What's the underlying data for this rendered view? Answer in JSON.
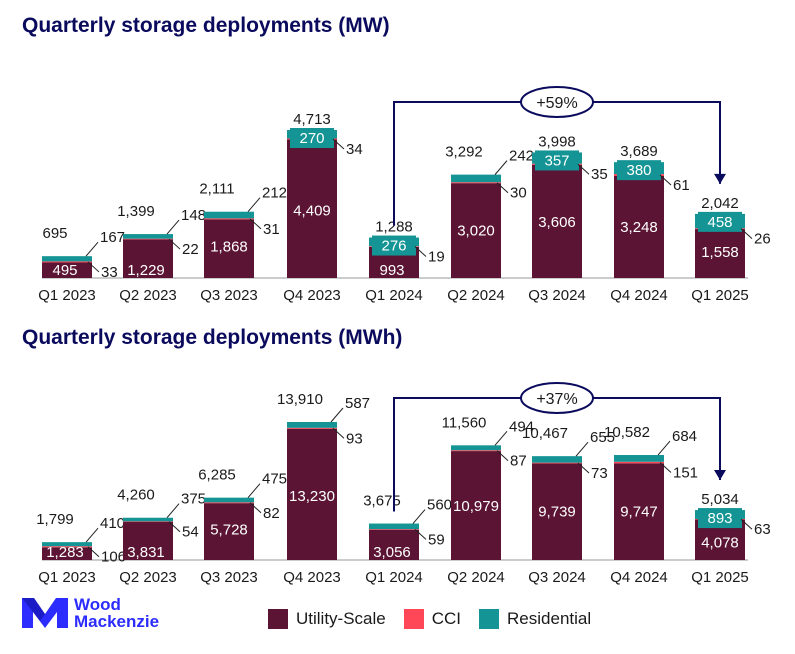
{
  "titles": {
    "mw": "Quarterly storage deployments (MW)",
    "mwh": "Quarterly storage deployments (MWh)"
  },
  "colors": {
    "utility": "#5b1433",
    "cci": "#ff4757",
    "residential": "#149494",
    "navy": "#0b0b5e"
  },
  "brand": {
    "line1": "Wood",
    "line2": "Mackenzie",
    "color": "#2d2cff"
  },
  "legend": {
    "utility": "Utility-Scale",
    "cci": "CCI",
    "residential": "Residential"
  },
  "chart_data": [
    {
      "type": "bar",
      "stacked": true,
      "title": "Quarterly storage deployments (MW)",
      "categories": [
        "Q1 2023",
        "Q2 2023",
        "Q3 2023",
        "Q4 2023",
        "Q1 2024",
        "Q2 2024",
        "Q3 2024",
        "Q4 2024",
        "Q1 2025"
      ],
      "series": [
        {
          "name": "Utility-Scale",
          "values": [
            495,
            1229,
            1868,
            4409,
            993,
            3020,
            3606,
            3248,
            1558
          ]
        },
        {
          "name": "CCI",
          "values": [
            33,
            22,
            31,
            34,
            19,
            30,
            35,
            61,
            26
          ]
        },
        {
          "name": "Residential",
          "values": [
            167,
            148,
            212,
            270,
            276,
            242,
            357,
            380,
            458
          ]
        }
      ],
      "totals": [
        695,
        1399,
        2111,
        4713,
        1288,
        3292,
        3998,
        3689,
        2042
      ],
      "value_labels": {
        "utility": [
          "495",
          "1,229",
          "1,868",
          "4,409",
          "993",
          "3,020",
          "3,606",
          "3,248",
          "1,558"
        ],
        "cci": [
          "33",
          "22",
          "31",
          "34",
          "19",
          "30",
          "35",
          "61",
          "26"
        ],
        "residential": [
          "167",
          "148",
          "212",
          "270",
          "276",
          "242",
          "357",
          "380",
          "458"
        ],
        "totals": [
          "695",
          "1,399",
          "2,111",
          "4,713",
          "1,288",
          "3,292",
          "3,998",
          "3,689",
          "2,042"
        ]
      },
      "ylim": [
        0,
        4713
      ],
      "annotation": {
        "text": "+59%",
        "from": "Q1 2024",
        "to": "Q1 2025"
      }
    },
    {
      "type": "bar",
      "stacked": true,
      "title": "Quarterly storage deployments (MWh)",
      "categories": [
        "Q1 2023",
        "Q2 2023",
        "Q3 2023",
        "Q4 2023",
        "Q1 2024",
        "Q2 2024",
        "Q3 2024",
        "Q4 2024",
        "Q1 2025"
      ],
      "series": [
        {
          "name": "Utility-Scale",
          "values": [
            1283,
            3831,
            5728,
            13230,
            3056,
            10979,
            9739,
            9747,
            4078
          ]
        },
        {
          "name": "CCI",
          "values": [
            106,
            54,
            82,
            93,
            59,
            87,
            73,
            151,
            63
          ]
        },
        {
          "name": "Residential",
          "values": [
            410,
            375,
            475,
            587,
            560,
            494,
            655,
            684,
            893
          ]
        }
      ],
      "totals": [
        1799,
        4260,
        6285,
        13910,
        3675,
        11560,
        10467,
        10582,
        5034
      ],
      "value_labels": {
        "utility": [
          "1,283",
          "3,831",
          "5,728",
          "13,230",
          "3,056",
          "10,979",
          "9,739",
          "9,747",
          "4,078"
        ],
        "cci": [
          "106",
          "54",
          "82",
          "93",
          "59",
          "87",
          "73",
          "151",
          "63"
        ],
        "residential": [
          "410",
          "375",
          "475",
          "587",
          "560",
          "494",
          "655",
          "684",
          "893"
        ],
        "totals": [
          "1,799",
          "4,260",
          "6,285",
          "13,910",
          "3,675",
          "11,560",
          "10,467",
          "10,582",
          "5,034"
        ]
      },
      "ylim": [
        0,
        13910
      ],
      "annotation": {
        "text": "+37%",
        "from": "Q1 2024",
        "to": "Q1 2025"
      }
    }
  ]
}
